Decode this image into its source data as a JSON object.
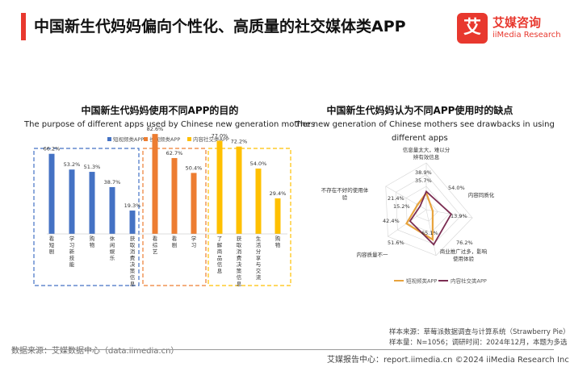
{
  "header": {
    "title": "中国新生代妈妈偏向个性化、高质量的社交媒体类APP",
    "logo_mark": "艾",
    "logo_cn": "艾媒咨询",
    "logo_en": "iiMedia Research"
  },
  "colors": {
    "accent": "#e8382e",
    "blue": "#4472c4",
    "orange": "#ed7d31",
    "yellow": "#ffc000",
    "purple": "#7b2d52",
    "radar_orange": "#e8a33d"
  },
  "left_panel": {
    "title_cn": "中国新生代妈妈使用不同APP的目的",
    "title_en": "The purpose of different apps used by Chinese new generation mothers"
  },
  "right_panel": {
    "title_cn": "中国新生代妈妈认为不同APP使用时的缺点",
    "title_en_1": "The new generation of Chinese mothers see drawbacks in using",
    "title_en_2": "different apps"
  },
  "chart_data": [
    {
      "type": "bar",
      "legend_position": "top",
      "ylim": [
        0,
        100
      ],
      "series": [
        {
          "name": "短视频类APP",
          "color": "#4472c4",
          "categories": [
            "看短剧",
            "学习新技能",
            "购物",
            "休闲娱乐",
            "获取消费决策信息"
          ],
          "values": [
            66.2,
            53.2,
            51.3,
            38.7,
            19.3
          ],
          "labels": [
            "66.2%",
            "53.2%",
            "51.3%",
            "38.7%",
            "19.3%"
          ]
        },
        {
          "name": "长视频类APP",
          "color": "#ed7d31",
          "categories": [
            "看综艺",
            "看剧",
            "学习"
          ],
          "values": [
            82.6,
            62.7,
            50.4
          ],
          "labels": [
            "82.6%",
            "62.7%",
            "50.4%"
          ]
        },
        {
          "name": "内容社交类APP",
          "color": "#ffc000",
          "categories": [
            "了解商品信息",
            "获取消费决策信息",
            "生活分享与交流",
            "购物"
          ],
          "values": [
            77.0,
            72.2,
            54.0,
            29.4
          ],
          "labels": [
            "77.0%",
            "72.2%",
            "54.0%",
            "29.4%"
          ]
        }
      ]
    },
    {
      "type": "radar",
      "legend_position": "bottom",
      "axes": [
        "信息量太大，难以分辨有效信息",
        "内容同质化",
        "商业推广过多，影响使用体验",
        "内容质量不一",
        "不存在不好的使用体验"
      ],
      "rlim": [
        0,
        100
      ],
      "series": [
        {
          "name": "短视频类APP",
          "color": "#e8a33d",
          "values": [
            35.7,
            13.9,
            65.1,
            51.6,
            21.4
          ],
          "labels": [
            "35.7%",
            "13.9%",
            "65.1%",
            "51.6%",
            "21.4%"
          ]
        },
        {
          "name": "内容社交类APP",
          "color": "#7b2d52",
          "values": [
            38.9,
            54.0,
            76.2,
            42.4,
            15.2
          ],
          "labels": [
            "38.9%",
            "54.0%",
            "76.2%",
            "42.4%",
            "15.2%"
          ]
        }
      ]
    }
  ],
  "footer": {
    "source_left": "数据来源：艾媒数据中心（data.iimedia.cn）",
    "sample_source": "样本来源：草莓派数据调查与计算系统（Strawberry Pie）",
    "sample_size": "样本量：N=1056；调研时间：2024年12月，本题为多选",
    "brand": "艾媒报告中心：report.iimedia.cn ©2024 iiMedia Research Inc"
  }
}
